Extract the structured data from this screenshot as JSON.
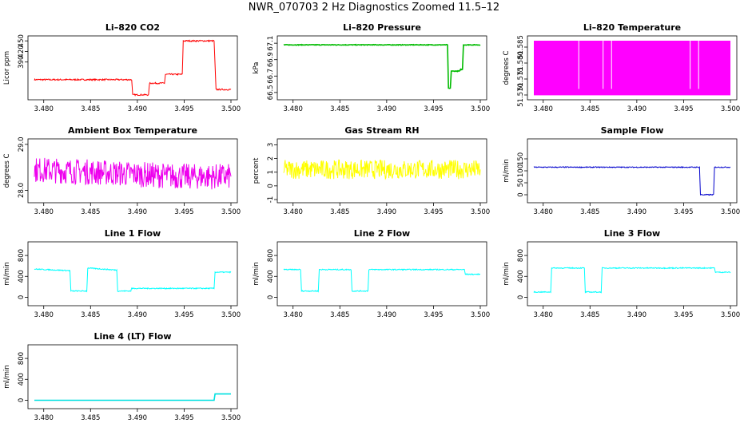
{
  "title": "NWR_070703  2 Hz Diagnostics Zoomed 11.5–12",
  "chart_data": [
    {
      "type": "line",
      "title": "Li–820 CO2",
      "ylabel": "Licor ppm",
      "color": "#ff0000",
      "xlim": [
        3.479,
        3.5
      ],
      "ylim": [
        292,
        455
      ],
      "xticks": [
        "3.480",
        "3.485",
        "3.490",
        "3.495",
        "3.500"
      ],
      "xtick_values": [
        3.48,
        3.485,
        3.49,
        3.495,
        3.5
      ],
      "yticks": [
        "390",
        "420",
        "450"
      ],
      "ytick_values": [
        390,
        420,
        450
      ],
      "series": [
        {
          "x": [
            3.479,
            3.4894,
            3.4895,
            3.4912,
            3.4913,
            3.4929,
            3.493,
            3.4948,
            3.4949,
            3.4982,
            3.4984,
            3.5
          ],
          "y": [
            340,
            340,
            297,
            297,
            330,
            330,
            355,
            355,
            450,
            450,
            312,
            312
          ]
        }
      ],
      "noise": 2
    },
    {
      "type": "line",
      "title": "Li–820 Pressure",
      "ylabel": "kPa",
      "color": "#00bb00",
      "xlim": [
        3.479,
        3.5
      ],
      "ylim": [
        66.45,
        67.15
      ],
      "xticks": [
        "3.480",
        "3.485",
        "3.490",
        "3.495",
        "3.500"
      ],
      "xtick_values": [
        3.48,
        3.485,
        3.49,
        3.495,
        3.5
      ],
      "yticks": [
        "66.5",
        "66.7",
        "66.9",
        "67.1"
      ],
      "ytick_values": [
        66.5,
        66.7,
        66.9,
        67.1
      ],
      "series": [
        {
          "x": [
            3.479,
            3.4965,
            3.4966,
            3.4968,
            3.4969,
            3.4978,
            3.4979,
            3.4981,
            3.4982,
            3.5
          ],
          "y": [
            67.08,
            67.08,
            66.55,
            66.55,
            66.76,
            66.76,
            66.78,
            66.78,
            67.08,
            67.08
          ]
        }
      ],
      "noise": 0.004
    },
    {
      "type": "line",
      "title": "Li–820 Temperature",
      "ylabel": "degrees C",
      "color": "#ff00ff",
      "xlim": [
        3.479,
        3.5
      ],
      "ylim": [
        51.5695,
        51.5875
      ],
      "xticks": [
        "3.480",
        "3.485",
        "3.490",
        "3.495",
        "3.500"
      ],
      "xtick_values": [
        3.48,
        3.485,
        3.49,
        3.495,
        3.5
      ],
      "yticks": [
        "51.570",
        "51.575",
        "51.580",
        "51.585"
      ],
      "ytick_values": [
        51.57,
        51.575,
        51.58,
        51.585
      ],
      "series": [
        {
          "x": [
            3.479,
            3.5
          ],
          "y": [
            51.5699,
            51.587
          ]
        }
      ],
      "fill_band": true
    },
    {
      "type": "line",
      "title": "Ambient Box Temperature",
      "ylabel": "degrees C",
      "color": "#ee00ee",
      "xlim": [
        3.479,
        3.5
      ],
      "ylim": [
        27.8,
        29.05
      ],
      "xticks": [
        "3.480",
        "3.485",
        "3.490",
        "3.495",
        "3.500"
      ],
      "xtick_values": [
        3.48,
        3.485,
        3.49,
        3.495,
        3.5
      ],
      "yticks": [
        "28.0",
        "29.0"
      ],
      "ytick_values": [
        28.0,
        29.0
      ],
      "series": [
        {
          "x": [
            3.479,
            3.485,
            3.49,
            3.495,
            3.5
          ],
          "y": [
            28.45,
            28.4,
            28.35,
            28.3,
            28.3
          ]
        }
      ],
      "noise": 0.28
    },
    {
      "type": "line",
      "title": "Gas Stream RH",
      "ylabel": "percent",
      "color": "#ffff00",
      "xlim": [
        3.479,
        3.5
      ],
      "ylim": [
        -1,
        3.2
      ],
      "xticks": [
        "3.480",
        "3.485",
        "3.490",
        "3.495",
        "3.500"
      ],
      "xtick_values": [
        3.48,
        3.485,
        3.49,
        3.495,
        3.5
      ],
      "yticks": [
        "-1",
        "0",
        "1",
        "2",
        "3"
      ],
      "ytick_values": [
        -1,
        0,
        1,
        2,
        3
      ],
      "series": [
        {
          "x": [
            3.479,
            3.5
          ],
          "y": [
            1.2,
            1.2
          ]
        }
      ],
      "noise": 0.7
    },
    {
      "type": "line",
      "title": "Sample Flow",
      "ylabel": "ml/min",
      "color": "#0000cc",
      "xlim": [
        3.479,
        3.5
      ],
      "ylim": [
        -20,
        220
      ],
      "xticks": [
        "3.480",
        "3.485",
        "3.490",
        "3.495",
        "3.500"
      ],
      "xtick_values": [
        3.48,
        3.485,
        3.49,
        3.495,
        3.5
      ],
      "yticks": [
        "0",
        "50",
        "100",
        "150"
      ],
      "ytick_values": [
        0,
        50,
        100,
        150
      ],
      "series": [
        {
          "x": [
            3.479,
            3.4967,
            3.4968,
            3.4982,
            3.4983,
            3.5
          ],
          "y": [
            115,
            115,
            0,
            0,
            115,
            115
          ]
        }
      ],
      "noise": 2
    },
    {
      "type": "line",
      "title": "Line 1 Flow",
      "ylabel": "ml/min",
      "color": "#00ffff",
      "xlim": [
        3.479,
        3.5
      ],
      "ylim": [
        -100,
        1000
      ],
      "xticks": [
        "3.480",
        "3.485",
        "3.490",
        "3.495",
        "3.500"
      ],
      "xtick_values": [
        3.48,
        3.485,
        3.49,
        3.495,
        3.5
      ],
      "yticks": [
        "0",
        "400",
        "800"
      ],
      "ytick_values": [
        0,
        400,
        800
      ],
      "series": [
        {
          "x": [
            3.479,
            3.4828,
            3.4829,
            3.4846,
            3.4847,
            3.4878,
            3.4879,
            3.4893,
            3.4894,
            3.4982,
            3.4983,
            3.5
          ],
          "y": [
            540,
            510,
            120,
            120,
            560,
            520,
            120,
            120,
            170,
            170,
            480,
            480
          ]
        }
      ],
      "noise": 10
    },
    {
      "type": "line",
      "title": "Line 2 Flow",
      "ylabel": "ml/min",
      "color": "#00ffff",
      "xlim": [
        3.479,
        3.5
      ],
      "ylim": [
        -100,
        1000
      ],
      "xticks": [
        "3.480",
        "3.485",
        "3.490",
        "3.495",
        "3.500"
      ],
      "xtick_values": [
        3.48,
        3.485,
        3.49,
        3.495,
        3.5
      ],
      "yticks": [
        "0",
        "400",
        "800"
      ],
      "ytick_values": [
        0,
        400,
        800
      ],
      "series": [
        {
          "x": [
            3.479,
            3.4808,
            3.4809,
            3.4827,
            3.4828,
            3.4862,
            3.4863,
            3.488,
            3.4881,
            3.4983,
            3.4984,
            3.5
          ],
          "y": [
            530,
            530,
            120,
            120,
            530,
            530,
            120,
            120,
            530,
            530,
            440,
            440
          ]
        }
      ],
      "noise": 10
    },
    {
      "type": "line",
      "title": "Line 3 Flow",
      "ylabel": "ml/min",
      "color": "#00ffff",
      "xlim": [
        3.479,
        3.5
      ],
      "ylim": [
        -100,
        1000
      ],
      "xticks": [
        "3.480",
        "3.485",
        "3.490",
        "3.495",
        "3.500"
      ],
      "xtick_values": [
        3.48,
        3.485,
        3.49,
        3.495,
        3.5
      ],
      "yticks": [
        "0",
        "400",
        "800"
      ],
      "ytick_values": [
        0,
        400,
        800
      ],
      "series": [
        {
          "x": [
            3.479,
            3.4808,
            3.4809,
            3.4844,
            3.4845,
            3.4862,
            3.4863,
            3.4983,
            3.4984,
            3.5
          ],
          "y": [
            100,
            100,
            560,
            560,
            100,
            100,
            560,
            560,
            480,
            480
          ]
        }
      ],
      "noise": 10
    },
    {
      "type": "line",
      "title": "Line 4 (LT) Flow",
      "ylabel": "ml/min",
      "color": "#00e0e0",
      "xlim": [
        3.479,
        3.5
      ],
      "ylim": [
        -100,
        1000
      ],
      "xticks": [
        "3.480",
        "3.485",
        "3.490",
        "3.495",
        "3.500"
      ],
      "xtick_values": [
        3.48,
        3.485,
        3.49,
        3.495,
        3.5
      ],
      "yticks": [
        "0",
        "400",
        "800"
      ],
      "ytick_values": [
        0,
        400,
        800
      ],
      "series": [
        {
          "x": [
            3.479,
            3.4982,
            3.4983,
            3.5
          ],
          "y": [
            0,
            0,
            120,
            120
          ]
        }
      ],
      "noise": 0
    }
  ]
}
